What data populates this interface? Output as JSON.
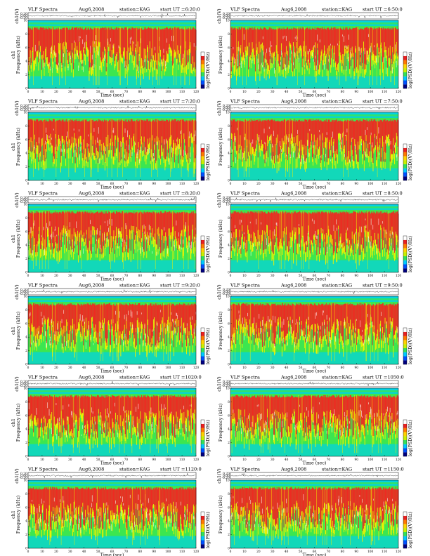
{
  "colors": {
    "spec_low": "#00d2e6",
    "spec_mid": "#3ce650",
    "spec_yellow": "#f0f000",
    "spec_high": "#ee2a22",
    "spec_top": "#ffffff",
    "colorbar": [
      "#000080",
      "#0050ff",
      "#00c8ff",
      "#33e05a",
      "#c8f000",
      "#ffd200",
      "#ff7800",
      "#e82020",
      "#ffffff"
    ]
  },
  "panels": [
    {
      "title": "VLF Spectra",
      "date": "Aug6,2008",
      "station": "station=KAG",
      "start": "start  UT =6:20:0",
      "ylabel_wave": "ch1(V)",
      "ylabel_freq": "Frequency (kHz)",
      "ylabel_channel": "ch1",
      "xlabel": "Time  (sec)",
      "cbar_label": "log(PSD)(V²/Hz)"
    },
    {
      "title": "VLF Spectra",
      "date": "Aug6,2008",
      "station": "station=KAG",
      "start": "start  UT =6:50:0",
      "ylabel_wave": "ch1(V)",
      "ylabel_freq": "Frequency (kHz)",
      "ylabel_channel": "",
      "xlabel": "Time  (sec)",
      "cbar_label": "log(PSD)(V²/Hz)"
    },
    {
      "title": "VLF Spectra",
      "date": "Aug6,2008",
      "station": "station=KAG",
      "start": "start  UT =7:20:0",
      "ylabel_wave": "ch1(V)",
      "ylabel_freq": "Frequency (kHz)",
      "ylabel_channel": "ch1",
      "xlabel": "Time  (sec)",
      "cbar_label": "log(PSD)(V²/Hz)"
    },
    {
      "title": "VLF Spectra",
      "date": "Aug6,2008",
      "station": "station=KAG",
      "start": "start  UT =7:50:0",
      "ylabel_wave": "ch1(V)",
      "ylabel_freq": "Frequency (kHz)",
      "ylabel_channel": "",
      "xlabel": "Time  (sec)",
      "cbar_label": "log(PSD)(V²/Hz)"
    },
    {
      "title": "VLF Spectra",
      "date": "Aug6,2008",
      "station": "station=KAG",
      "start": "start  UT =8:20:0",
      "ylabel_wave": "ch1(V)",
      "ylabel_freq": "Frequency (kHz)",
      "ylabel_channel": "ch1",
      "xlabel": "Time  (sec)",
      "cbar_label": "log(PSD)(V²/Hz)"
    },
    {
      "title": "VLF Spectra",
      "date": "Aug6,2008",
      "station": "station=KAG",
      "start": "start  UT =8:50:0",
      "ylabel_wave": "ch1(V)",
      "ylabel_freq": "Frequency (kHz)",
      "ylabel_channel": "",
      "xlabel": "Time  (sec)",
      "cbar_label": "log(PSD)(V²/Hz)"
    },
    {
      "title": "VLF Spectra",
      "date": "Aug6,2008",
      "station": "station=KAG",
      "start": "start  UT =9:20:0",
      "ylabel_wave": "ch1(V)",
      "ylabel_freq": "Frequency (kHz)",
      "ylabel_channel": "ch1",
      "xlabel": "Time  (sec)",
      "cbar_label": "log(PSD)(V²/Hz)"
    },
    {
      "title": "VLF Spectra",
      "date": "Aug6,2008",
      "station": "station=KAG",
      "start": "start  UT =9:50:0",
      "ylabel_wave": "ch1(V)",
      "ylabel_freq": "Frequency (kHz)",
      "ylabel_channel": "",
      "xlabel": "Time  (sec)",
      "cbar_label": "log(PSD)(V²/Hz)"
    },
    {
      "title": "VLF Spectra",
      "date": "Aug6,2008",
      "station": "station=KAG",
      "start": "start  UT =1020:0",
      "ylabel_wave": "ch1(V)",
      "ylabel_freq": "Frequency (kHz)",
      "ylabel_channel": "ch1",
      "xlabel": "Time  (sec)",
      "cbar_label": "log(PSD)(V²/Hz)"
    },
    {
      "title": "VLF Spectra",
      "date": "Aug6,2008",
      "station": "station=KAG",
      "start": "start  UT =1050:0",
      "ylabel_wave": "ch1(V)",
      "ylabel_freq": "Frequency (kHz)",
      "ylabel_channel": "",
      "xlabel": "Time  (sec)",
      "cbar_label": "log(PSD)(V²/Hz)"
    },
    {
      "title": "VLF Spectra",
      "date": "Aug6,2008",
      "station": "station=KAG",
      "start": "start  UT =1120:0",
      "ylabel_wave": "ch1(V)",
      "ylabel_freq": "Frequency (kHz)",
      "ylabel_channel": "ch1",
      "xlabel": "Time  (sec)",
      "cbar_label": "log(PSD)(V²/Hz)"
    },
    {
      "title": "VLF Spectra",
      "date": "Aug6,2008",
      "station": "station=KAG",
      "start": "start  UT =1150:0",
      "ylabel_wave": "ch1(V)",
      "ylabel_freq": "Frequency (kHz)",
      "ylabel_channel": "",
      "xlabel": "Time  (sec)",
      "cbar_label": "log(PSD)(V²/Hz)"
    }
  ],
  "chart_data": {
    "type": "heatmap",
    "panel_count": 12,
    "x_ticks": [
      "0",
      "10",
      "20",
      "30",
      "40",
      "50",
      "60",
      "70",
      "80",
      "90",
      "100",
      "110",
      "120"
    ],
    "xlim": [
      0,
      120
    ],
    "freq_ticks": [
      "0",
      "2",
      "4",
      "6",
      "8",
      "10"
    ],
    "freq_ylim": [
      0,
      10
    ],
    "wave_ticks_left": [
      "0.20",
      "0.00",
      "-0.20"
    ],
    "wave_ticks_right": [
      "0.20",
      "0.00",
      "-0.20"
    ]
  }
}
